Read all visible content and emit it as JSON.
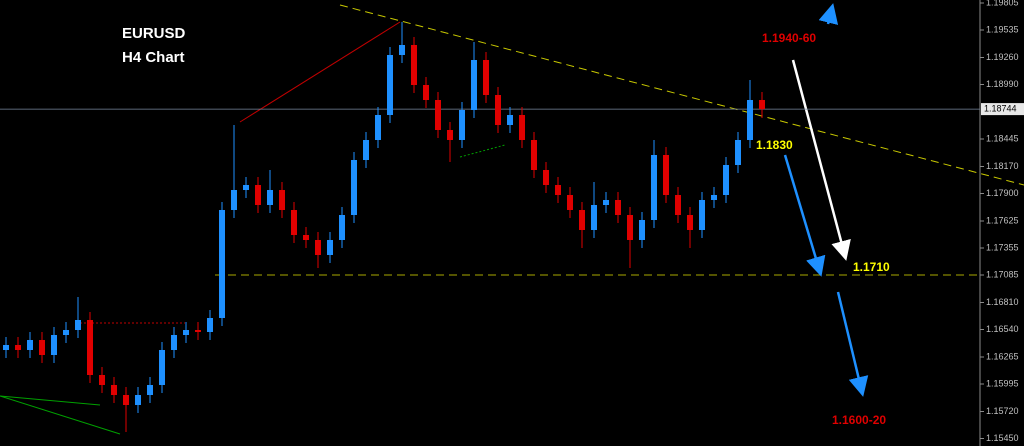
{
  "chart_data": {
    "type": "candlestick",
    "title": "EURUSD",
    "subtitle": "H4 Chart",
    "up_color": "#1e90ff",
    "down_color": "#e00000",
    "ylim": [
      1.15375,
      1.19835
    ],
    "yticks": [
      1.19805,
      1.19535,
      {
        "value": 1.1926,
        "label": "1.19260"
      },
      {
        "value": 1.1899,
        "label": "1.18990"
      },
      1.18445,
      {
        "value": 1.1817,
        "label": "1.18170"
      },
      {
        "value": 1.179,
        "label": "1.17900"
      },
      1.17625,
      1.17355,
      1.17085,
      {
        "value": 1.1681,
        "label": "1.16810"
      },
      {
        "value": 1.1654,
        "label": "1.16540"
      },
      1.16265,
      1.15995,
      {
        "value": 1.1572,
        "label": "1.15720"
      },
      {
        "value": 1.1545,
        "label": "1.15450"
      }
    ],
    "last_price": 1.18744,
    "annotations": [
      "1.1940-60",
      "1.1830",
      "1.1710",
      "1.1600-20"
    ],
    "open": [
      1.16335,
      1.16385,
      1.16335,
      1.16435,
      1.16285,
      1.16485,
      1.16535,
      1.16635,
      1.16085,
      1.15985,
      1.15885,
      1.15785,
      1.15885,
      1.15985,
      1.16335,
      1.16485,
      1.16535,
      1.16515,
      1.16655,
      1.17735,
      1.17935,
      1.17985,
      1.17785,
      1.17935,
      1.17735,
      1.17485,
      1.17435,
      1.17285,
      1.17435,
      1.17685,
      1.18235,
      1.18435,
      1.18685,
      1.19285,
      1.19385,
      1.18985,
      1.18835,
      1.18535,
      1.18435,
      1.18735,
      1.19235,
      1.18885,
      1.18585,
      1.18685,
      1.18435,
      1.18135,
      1.17985,
      1.17885,
      1.17735,
      1.17535,
      1.17785,
      1.17835,
      1.17685,
      1.17435,
      1.17635,
      1.18285,
      1.17885,
      1.17685,
      1.17535,
      1.17835,
      1.17885,
      1.18185,
      1.18435,
      1.18835
    ],
    "high": [
      1.16465,
      1.16465,
      1.16515,
      1.16515,
      1.16565,
      1.16615,
      1.16865,
      1.16715,
      1.16165,
      1.16065,
      1.15965,
      1.15965,
      1.16065,
      1.16415,
      1.16565,
      1.16615,
      1.16615,
      1.16735,
      1.17815,
      1.18585,
      1.18065,
      1.18065,
      1.18135,
      1.18015,
      1.17815,
      1.17565,
      1.17515,
      1.17515,
      1.17765,
      1.18315,
      1.18515,
      1.18765,
      1.19365,
      1.19615,
      1.19465,
      1.19065,
      1.18915,
      1.18615,
      1.18815,
      1.19415,
      1.19315,
      1.18965,
      1.18765,
      1.18765,
      1.18515,
      1.18215,
      1.18065,
      1.17965,
      1.17815,
      1.18015,
      1.17915,
      1.17915,
      1.17765,
      1.17715,
      1.18435,
      1.18365,
      1.17965,
      1.17765,
      1.17915,
      1.17965,
      1.18265,
      1.18515,
      1.19035,
      1.18915
    ],
    "low": [
      1.16255,
      1.16255,
      1.16255,
      1.16205,
      1.16205,
      1.16405,
      1.16455,
      1.16005,
      1.15905,
      1.15805,
      1.15515,
      1.15705,
      1.15805,
      1.15905,
      1.16255,
      1.16405,
      1.16435,
      1.16435,
      1.16575,
      1.17655,
      1.17855,
      1.17705,
      1.17705,
      1.17655,
      1.17405,
      1.17355,
      1.17155,
      1.17205,
      1.17355,
      1.17605,
      1.18155,
      1.18355,
      1.18605,
      1.19205,
      1.18905,
      1.18755,
      1.18455,
      1.18215,
      1.18355,
      1.18655,
      1.18805,
      1.18505,
      1.18505,
      1.18355,
      1.18055,
      1.17905,
      1.17805,
      1.17655,
      1.17355,
      1.17455,
      1.17705,
      1.17605,
      1.17155,
      1.17355,
      1.17555,
      1.17805,
      1.17605,
      1.17355,
      1.17455,
      1.17755,
      1.17805,
      1.18105,
      1.18355,
      1.18655
    ],
    "close": [
      1.16385,
      1.16335,
      1.16435,
      1.16285,
      1.16485,
      1.16535,
      1.16635,
      1.16085,
      1.15985,
      1.15885,
      1.15785,
      1.15885,
      1.15985,
      1.16335,
      1.16485,
      1.16535,
      1.16515,
      1.16655,
      1.17735,
      1.17935,
      1.17985,
      1.17785,
      1.17935,
      1.17735,
      1.17485,
      1.17435,
      1.17285,
      1.17435,
      1.17685,
      1.18235,
      1.18435,
      1.18685,
      1.19285,
      1.19385,
      1.18985,
      1.18835,
      1.18535,
      1.18435,
      1.18735,
      1.19235,
      1.18885,
      1.18585,
      1.18685,
      1.18435,
      1.18135,
      1.17985,
      1.17885,
      1.17735,
      1.17535,
      1.17785,
      1.17835,
      1.17685,
      1.17435,
      1.17635,
      1.18285,
      1.17885,
      1.17685,
      1.17535,
      1.17835,
      1.17885,
      1.18185,
      1.18435,
      1.18835,
      1.18744
    ]
  }
}
